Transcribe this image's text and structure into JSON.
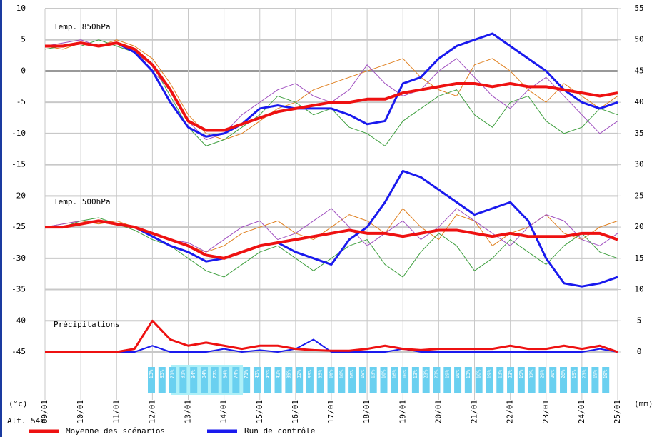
{
  "chart_data": {
    "type": "line",
    "x": [
      0,
      0.5,
      1,
      1.5,
      2,
      2.5,
      3,
      3.5,
      4,
      4.5,
      5,
      5.5,
      6,
      6.5,
      7,
      7.5,
      8,
      8.5,
      9,
      9.5,
      10,
      10.5,
      11,
      11.5,
      12,
      12.5,
      13,
      13.5,
      14,
      14.5,
      15,
      15.5,
      16
    ],
    "xlim": [
      0,
      16
    ],
    "xticks": [
      {
        "value": 0,
        "label": "09/01"
      },
      {
        "value": 1,
        "label": "10/01"
      },
      {
        "value": 2,
        "label": "11/01"
      },
      {
        "value": 3,
        "label": "12/01"
      },
      {
        "value": 4,
        "label": "13/01"
      },
      {
        "value": 5,
        "label": "14/01"
      },
      {
        "value": 6,
        "label": "15/01"
      },
      {
        "value": 7,
        "label": "16/01"
      },
      {
        "value": 8,
        "label": "17/01"
      },
      {
        "value": 9,
        "label": "18/01"
      },
      {
        "value": 10,
        "label": "19/01"
      },
      {
        "value": 11,
        "label": "20/01"
      },
      {
        "value": 12,
        "label": "21/01"
      },
      {
        "value": 13,
        "label": "22/01"
      },
      {
        "value": 14,
        "label": "23/01"
      },
      {
        "value": 15,
        "label": "24/01"
      },
      {
        "value": 16,
        "label": "25/01"
      }
    ],
    "ylim": [
      -45,
      10
    ],
    "yticks": [
      -45,
      -40,
      -35,
      -30,
      -25,
      -20,
      -15,
      -10,
      -5,
      0,
      5,
      10
    ],
    "y2lim": [
      0,
      55
    ],
    "y2ticks": [
      0,
      5,
      10,
      15,
      20,
      25,
      30,
      35,
      40,
      45,
      50,
      55
    ],
    "y_unit": "(°c)",
    "y2_unit": "(mm)",
    "altitude": "Alt. 54m",
    "grid": true,
    "annotations": [
      "Temp. 850hPa",
      "Temp. 500hPa",
      "Précipitations"
    ],
    "series": [
      {
        "color": "#e08020",
        "width": 1,
        "values": [
          4,
          3.5,
          4.5,
          4,
          5,
          4,
          2,
          -2,
          -7,
          -10,
          -11,
          -10,
          -8,
          -6,
          -5,
          -3,
          -2,
          -1,
          0,
          1,
          2,
          -1,
          -3,
          -4,
          1,
          2,
          0,
          -3,
          -5,
          -2,
          -4,
          -6,
          -4
        ]
      },
      {
        "color": "#40a040",
        "width": 1,
        "values": [
          3.5,
          4,
          4,
          5,
          4,
          3,
          1,
          -4,
          -9,
          -12,
          -11,
          -9,
          -7,
          -4,
          -5,
          -7,
          -6,
          -9,
          -10,
          -12,
          -8,
          -6,
          -4,
          -3,
          -7,
          -9,
          -5,
          -4,
          -8,
          -10,
          -9,
          -6,
          -7
        ]
      },
      {
        "color": "#a050c0",
        "width": 1,
        "values": [
          4,
          4.5,
          5,
          4,
          4.5,
          3.5,
          0,
          -3,
          -8,
          -11,
          -10,
          -7,
          -5,
          -3,
          -2,
          -4,
          -5,
          -3,
          1,
          -2,
          -4,
          -3,
          0,
          2,
          -1,
          -4,
          -6,
          -3,
          -1,
          -4,
          -7,
          -10,
          -8
        ]
      },
      {
        "color": "#e08020",
        "width": 1,
        "values": [
          -25,
          -24.5,
          -24,
          -24.5,
          -24,
          -25,
          -26,
          -27,
          -28,
          -29,
          -28,
          -26,
          -25,
          -24,
          -26,
          -27,
          -25,
          -23,
          -24,
          -26,
          -22,
          -25,
          -27,
          -23,
          -24,
          -28,
          -26,
          -25,
          -23,
          -26,
          -27,
          -25,
          -24
        ]
      },
      {
        "color": "#40a040",
        "width": 1,
        "values": [
          -25,
          -25,
          -24,
          -23.5,
          -24.5,
          -25.5,
          -27,
          -28,
          -30,
          -32,
          -33,
          -31,
          -29,
          -28,
          -30,
          -32,
          -30,
          -28,
          -27,
          -31,
          -33,
          -29,
          -26,
          -28,
          -32,
          -30,
          -27,
          -29,
          -31,
          -28,
          -26,
          -29,
          -30
        ]
      },
      {
        "color": "#a050c0",
        "width": 1,
        "values": [
          -25,
          -24.5,
          -24,
          -24,
          -24.5,
          -25,
          -26,
          -27,
          -27.5,
          -29,
          -27,
          -25,
          -24,
          -27,
          -26,
          -24,
          -22,
          -25,
          -28,
          -26,
          -24,
          -27,
          -25,
          -22,
          -24,
          -26,
          -28,
          -25,
          -23,
          -24,
          -27,
          -28,
          -26
        ]
      },
      {
        "color": "#1a1aee",
        "width": 3,
        "values": [
          4,
          4,
          4.5,
          4,
          4.5,
          3,
          0,
          -5,
          -9,
          -10.5,
          -10,
          -8.5,
          -6,
          -5.5,
          -6,
          -6,
          -6,
          -7,
          -8.5,
          -8,
          -2,
          -1,
          2,
          4,
          5,
          6,
          4,
          2,
          0,
          -3,
          -5,
          -6,
          -5
        ]
      },
      {
        "color": "#1a1aee",
        "width": 3,
        "values": [
          -25,
          -25,
          -24.5,
          -24,
          -24.5,
          -25,
          -26.5,
          -28,
          -29,
          -30.5,
          -30,
          -29,
          -28,
          -27.5,
          -29,
          -30,
          -31,
          -27,
          -25,
          -21,
          -16,
          -17,
          -19,
          -21,
          -23,
          -22,
          -21,
          -24,
          -30,
          -34,
          -34.5,
          -34,
          -33
        ]
      },
      {
        "color": "#1a1aee",
        "width": 2,
        "axis": "y2",
        "values": [
          0,
          0,
          0,
          0,
          0,
          0,
          1,
          0,
          0,
          0,
          0.5,
          0,
          0.3,
          0,
          0.5,
          2,
          0,
          0,
          0,
          0,
          0.5,
          0,
          0,
          0,
          0,
          0,
          0,
          0,
          0,
          0,
          0,
          0.5,
          0
        ]
      },
      {
        "color": "#ee1111",
        "width": 4,
        "values": [
          4,
          4,
          4.5,
          4,
          4.5,
          3.5,
          1,
          -3,
          -8,
          -9.5,
          -9.5,
          -8.5,
          -7.5,
          -6.5,
          -6,
          -5.5,
          -5,
          -5,
          -4.5,
          -4.5,
          -3.5,
          -3,
          -2.5,
          -2,
          -2,
          -2.5,
          -2,
          -2.5,
          -2.5,
          -3,
          -3.5,
          -4,
          -3.5
        ]
      },
      {
        "color": "#ee1111",
        "width": 4,
        "values": [
          -25,
          -25,
          -24.5,
          -24,
          -24.5,
          -25,
          -26,
          -27,
          -28,
          -29.5,
          -30,
          -29,
          -28,
          -27.5,
          -27,
          -26.5,
          -26,
          -25.5,
          -26,
          -26,
          -26.5,
          -26,
          -25.5,
          -25.5,
          -26,
          -26.5,
          -26,
          -26.5,
          -26.5,
          -26.5,
          -26,
          -26,
          -27
        ]
      },
      {
        "color": "#ee1111",
        "width": 3,
        "axis": "y2",
        "values": [
          0,
          0,
          0,
          0,
          0,
          0.5,
          5,
          2,
          1,
          1.5,
          1,
          0.5,
          1,
          1,
          0.5,
          0.3,
          0.2,
          0.2,
          0.5,
          1,
          0.5,
          0.3,
          0.5,
          0.5,
          0.5,
          0.5,
          1,
          0.5,
          0.5,
          1,
          0.5,
          1,
          0
        ]
      }
    ],
    "legend": [
      {
        "name": "Moyenne des scénarios",
        "color": "#ee1111"
      },
      {
        "name": "Run de contrôle",
        "color": "#1a1aee"
      }
    ],
    "probabilities": [
      "13%",
      "35%",
      "71%",
      "81%",
      "84%",
      "84%",
      "77%",
      "84%",
      "74%",
      "71%",
      "45%",
      "45%",
      "42%",
      "35%",
      "32%",
      "39%",
      "35%",
      "16%",
      "10%",
      "10%",
      "19%",
      "13%",
      "10%",
      "16%",
      "10%",
      "13%",
      "23%",
      "23%",
      "19%",
      "16%",
      "13%",
      "16%",
      "19%",
      "13%",
      "23%",
      "19%",
      "32%",
      "29%",
      "26%",
      "26%",
      "19%",
      "23%",
      "19%",
      "19%"
    ]
  }
}
